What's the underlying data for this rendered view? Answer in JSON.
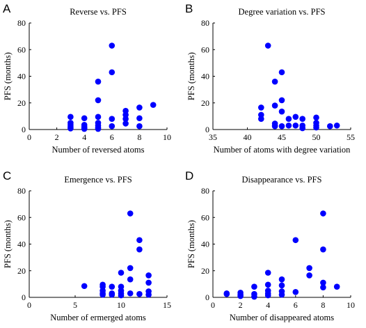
{
  "chart_data": [
    {
      "type": "scatter",
      "panel": "A",
      "title": "Reverse vs. PFS",
      "xlabel": "Number of reversed atoms",
      "ylabel": "PFS (months)",
      "xlim": [
        0,
        10
      ],
      "ylim": [
        0,
        80
      ],
      "xticks": [
        0,
        2,
        4,
        6,
        8,
        10
      ],
      "yticks": [
        0,
        20,
        40,
        60,
        80
      ],
      "marker_color": "#0000ff",
      "points": [
        [
          3,
          9.5
        ],
        [
          3,
          5
        ],
        [
          3,
          3.5
        ],
        [
          3,
          2
        ],
        [
          3,
          0.8
        ],
        [
          4,
          8.5
        ],
        [
          4,
          3.5
        ],
        [
          4,
          2
        ],
        [
          4,
          1
        ],
        [
          4,
          0.5
        ],
        [
          5,
          36
        ],
        [
          5,
          22
        ],
        [
          5,
          9.5
        ],
        [
          5,
          5
        ],
        [
          5,
          3
        ],
        [
          5,
          1.5
        ],
        [
          5,
          0.5
        ],
        [
          6,
          63
        ],
        [
          6,
          43
        ],
        [
          6,
          8
        ],
        [
          6,
          2.5
        ],
        [
          7,
          14
        ],
        [
          7,
          11
        ],
        [
          7,
          8
        ],
        [
          7,
          4.5
        ],
        [
          8,
          16.5
        ],
        [
          8,
          8.5
        ],
        [
          8,
          2.5
        ],
        [
          9,
          18.5
        ]
      ]
    },
    {
      "type": "scatter",
      "panel": "B",
      "title": "Degree variation vs. PFS",
      "xlabel": "Number of atoms with degree variation",
      "ylabel": "PFS (months)",
      "xlim": [
        35,
        55
      ],
      "ylim": [
        0,
        80
      ],
      "xticks": [
        35,
        40,
        45,
        50,
        55
      ],
      "yticks": [
        0,
        20,
        40,
        60,
        80
      ],
      "marker_color": "#0000ff",
      "points": [
        [
          42,
          16.5
        ],
        [
          42,
          11
        ],
        [
          42,
          8
        ],
        [
          43,
          63
        ],
        [
          44,
          36
        ],
        [
          44,
          18
        ],
        [
          44,
          4.5
        ],
        [
          44,
          3
        ],
        [
          44,
          2.5
        ],
        [
          45,
          43
        ],
        [
          45,
          22
        ],
        [
          45,
          13.5
        ],
        [
          45,
          2.5
        ],
        [
          46,
          8
        ],
        [
          46,
          3
        ],
        [
          47,
          9.5
        ],
        [
          47,
          3
        ],
        [
          48,
          8
        ],
        [
          48,
          3
        ],
        [
          48,
          1
        ],
        [
          50,
          9
        ],
        [
          50,
          5
        ],
        [
          50,
          3
        ],
        [
          50,
          1.5
        ],
        [
          52,
          2.5
        ],
        [
          53,
          3
        ]
      ]
    },
    {
      "type": "scatter",
      "panel": "C",
      "title": "Emergence vs. PFS",
      "xlabel": "Number of ermerged atoms",
      "ylabel": "PFS (months)",
      "xlim": [
        0,
        15
      ],
      "ylim": [
        0,
        80
      ],
      "xticks": [
        0,
        5,
        10,
        15
      ],
      "yticks": [
        0,
        20,
        40,
        60,
        80
      ],
      "marker_color": "#0000ff",
      "points": [
        [
          6,
          8.5
        ],
        [
          8,
          9.5
        ],
        [
          8,
          8
        ],
        [
          8,
          5
        ],
        [
          8,
          3
        ],
        [
          8,
          2
        ],
        [
          9,
          8
        ],
        [
          9,
          3
        ],
        [
          9,
          2
        ],
        [
          10,
          18.5
        ],
        [
          10,
          8
        ],
        [
          10,
          5
        ],
        [
          10,
          3
        ],
        [
          10,
          1.5
        ],
        [
          11,
          63
        ],
        [
          11,
          22
        ],
        [
          11,
          13.5
        ],
        [
          11,
          3
        ],
        [
          12,
          43
        ],
        [
          12,
          36
        ],
        [
          12,
          2.5
        ],
        [
          13,
          16.5
        ],
        [
          13,
          11
        ],
        [
          13,
          4.5
        ],
        [
          13,
          2
        ]
      ]
    },
    {
      "type": "scatter",
      "panel": "D",
      "title": "Disappearance vs. PFS",
      "xlabel": "Number of disappeared atoms",
      "ylabel": "PFS (months)",
      "xlim": [
        0,
        10
      ],
      "ylim": [
        0,
        80
      ],
      "xticks": [
        0,
        2,
        4,
        6,
        8,
        10
      ],
      "yticks": [
        0,
        20,
        40,
        60,
        80
      ],
      "marker_color": "#0000ff",
      "points": [
        [
          1,
          3
        ],
        [
          1,
          2.5
        ],
        [
          2,
          3.5
        ],
        [
          2,
          2
        ],
        [
          2,
          1
        ],
        [
          3,
          8
        ],
        [
          3,
          2.5
        ],
        [
          3,
          0.5
        ],
        [
          4,
          18.5
        ],
        [
          4,
          9.5
        ],
        [
          4,
          5
        ],
        [
          4,
          3
        ],
        [
          4,
          1.5
        ],
        [
          5,
          13.5
        ],
        [
          5,
          9
        ],
        [
          5,
          4.5
        ],
        [
          5,
          2
        ],
        [
          6,
          43
        ],
        [
          6,
          4
        ],
        [
          7,
          22
        ],
        [
          7,
          16.5
        ],
        [
          8,
          63
        ],
        [
          8,
          36
        ],
        [
          8,
          11
        ],
        [
          8,
          7.5
        ],
        [
          9,
          8
        ]
      ]
    }
  ]
}
